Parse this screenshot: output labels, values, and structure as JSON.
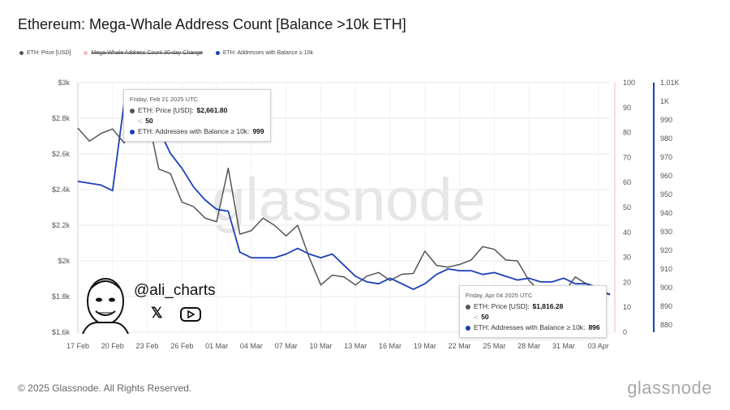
{
  "title": "Ethereum: Mega-Whale Address Count [Balance >10k ETH]",
  "legend": [
    {
      "label": "ETH: Price [USD]",
      "color": "#555555",
      "struck": false
    },
    {
      "label": "Mega-Whale Address Count 30-day Change",
      "color": "#f4b8b8",
      "struck": true
    },
    {
      "label": "ETH: Addresses with Balance ≥ 10k",
      "color": "#1c3fb8",
      "struck": false
    }
  ],
  "tooltip1": {
    "date": "Friday, Feb 21 2025 UTC",
    "price_label": "ETH: Price [USD]:",
    "price_value": "$2,661.80",
    "change_label": "-:",
    "change_value": "50",
    "addr_label": "ETH: Addresses with Balance ≥ 10k:",
    "addr_value": "999"
  },
  "tooltip2": {
    "date": "Friday, Apr 04 2025 UTC",
    "price_label": "ETH: Price [USD]:",
    "price_value": "$1,816.28",
    "change_label": "-:",
    "change_value": "50",
    "addr_label": "ETH: Addresses with Balance ≥ 10k:",
    "addr_value": "896"
  },
  "watermark": "glassnode",
  "social": {
    "handle": "@ali_charts",
    "x_glyph": "𝕏"
  },
  "footer": "© 2025 Glassnode. All Rights Reserved.",
  "brand": "glassnode",
  "colors": {
    "price": "#555555",
    "addresses": "#1c3fb8",
    "change_axis": "#f4b8b8",
    "grid": "#e8e8e8"
  },
  "chart_data": {
    "type": "line",
    "title": "Ethereum: Mega-Whale Address Count [Balance >10k ETH]",
    "x_start": "2025-02-17",
    "x_end": "2025-04-04",
    "x_ticks": [
      "17 Feb",
      "20 Feb",
      "23 Feb",
      "26 Feb",
      "01 Mar",
      "04 Mar",
      "07 Mar",
      "10 Mar",
      "13 Mar",
      "16 Mar",
      "19 Mar",
      "22 Mar",
      "25 Mar",
      "28 Mar",
      "31 Mar",
      "03 Apr"
    ],
    "y_left": {
      "range": [
        1600,
        3000
      ],
      "ticks": [
        "$1.6k",
        "$1.8k",
        "$2k",
        "$2.2k",
        "$2.4k",
        "$2.6k",
        "$2.8k",
        "$3k"
      ],
      "tick_values": [
        1600,
        1800,
        2000,
        2200,
        2400,
        2600,
        2800,
        3000
      ]
    },
    "y_mid": {
      "range": [
        0,
        100
      ],
      "ticks": [
        "0",
        "10",
        "20",
        "30",
        "40",
        "50",
        "60",
        "70",
        "80",
        "90",
        "100"
      ],
      "tick_values": [
        0,
        10,
        20,
        30,
        40,
        50,
        60,
        70,
        80,
        90,
        100
      ]
    },
    "y_right": {
      "range": [
        876,
        1010
      ],
      "ticks": [
        "880",
        "890",
        "900",
        "910",
        "920",
        "930",
        "940",
        "950",
        "960",
        "970",
        "980",
        "990",
        "1K",
        "1.01K"
      ],
      "tick_values": [
        880,
        890,
        900,
        910,
        920,
        930,
        940,
        950,
        960,
        970,
        980,
        990,
        1000,
        1010
      ]
    },
    "series": [
      {
        "name": "ETH: Price [USD]",
        "axis": "left",
        "values": [
          [
            "2025-02-17",
            2745
          ],
          [
            "2025-02-18",
            2672
          ],
          [
            "2025-02-19",
            2715
          ],
          [
            "2025-02-20",
            2740
          ],
          [
            "2025-02-21",
            2662
          ],
          [
            "2025-02-22",
            2765
          ],
          [
            "2025-02-23",
            2820
          ],
          [
            "2025-02-24",
            2515
          ],
          [
            "2025-02-25",
            2490
          ],
          [
            "2025-02-26",
            2330
          ],
          [
            "2025-02-27",
            2305
          ],
          [
            "2025-02-28",
            2240
          ],
          [
            "2025-03-01",
            2220
          ],
          [
            "2025-03-02",
            2520
          ],
          [
            "2025-03-03",
            2150
          ],
          [
            "2025-03-04",
            2170
          ],
          [
            "2025-03-05",
            2240
          ],
          [
            "2025-03-06",
            2200
          ],
          [
            "2025-03-07",
            2140
          ],
          [
            "2025-03-08",
            2200
          ],
          [
            "2025-03-09",
            2020
          ],
          [
            "2025-03-10",
            1865
          ],
          [
            "2025-03-11",
            1920
          ],
          [
            "2025-03-12",
            1910
          ],
          [
            "2025-03-13",
            1865
          ],
          [
            "2025-03-14",
            1915
          ],
          [
            "2025-03-15",
            1935
          ],
          [
            "2025-03-16",
            1890
          ],
          [
            "2025-03-17",
            1925
          ],
          [
            "2025-03-18",
            1930
          ],
          [
            "2025-03-19",
            2055
          ],
          [
            "2025-03-20",
            1975
          ],
          [
            "2025-03-21",
            1965
          ],
          [
            "2025-03-22",
            1980
          ],
          [
            "2025-03-23",
            2005
          ],
          [
            "2025-03-24",
            2080
          ],
          [
            "2025-03-25",
            2065
          ],
          [
            "2025-03-26",
            2005
          ],
          [
            "2025-03-27",
            2000
          ],
          [
            "2025-03-28",
            1890
          ],
          [
            "2025-03-29",
            1825
          ],
          [
            "2025-03-30",
            1810
          ],
          [
            "2025-03-31",
            1820
          ],
          [
            "2025-04-01",
            1910
          ],
          [
            "2025-04-02",
            1870
          ],
          [
            "2025-04-03",
            1810
          ],
          [
            "2025-04-04",
            1816
          ]
        ]
      },
      {
        "name": "ETH: Addresses with Balance ≥ 10k",
        "axis": "right",
        "values": [
          [
            "2025-02-17",
            957
          ],
          [
            "2025-02-18",
            956
          ],
          [
            "2025-02-19",
            955
          ],
          [
            "2025-02-20",
            952
          ],
          [
            "2025-02-21",
            999
          ],
          [
            "2025-02-22",
            997
          ],
          [
            "2025-02-23",
            989
          ],
          [
            "2025-02-24",
            985
          ],
          [
            "2025-02-25",
            972
          ],
          [
            "2025-02-26",
            964
          ],
          [
            "2025-02-27",
            954
          ],
          [
            "2025-02-28",
            947
          ],
          [
            "2025-03-01",
            942
          ],
          [
            "2025-03-02",
            941
          ],
          [
            "2025-03-03",
            919
          ],
          [
            "2025-03-04",
            916
          ],
          [
            "2025-03-05",
            916
          ],
          [
            "2025-03-06",
            916
          ],
          [
            "2025-03-07",
            918
          ],
          [
            "2025-03-08",
            921
          ],
          [
            "2025-03-09",
            918
          ],
          [
            "2025-03-10",
            916
          ],
          [
            "2025-03-11",
            918
          ],
          [
            "2025-03-12",
            912
          ],
          [
            "2025-03-13",
            906
          ],
          [
            "2025-03-14",
            903
          ],
          [
            "2025-03-15",
            902
          ],
          [
            "2025-03-16",
            905
          ],
          [
            "2025-03-17",
            902
          ],
          [
            "2025-03-18",
            899
          ],
          [
            "2025-03-19",
            902
          ],
          [
            "2025-03-20",
            907
          ],
          [
            "2025-03-21",
            910
          ],
          [
            "2025-03-22",
            909
          ],
          [
            "2025-03-23",
            909
          ],
          [
            "2025-03-24",
            907
          ],
          [
            "2025-03-25",
            908
          ],
          [
            "2025-03-26",
            906
          ],
          [
            "2025-03-27",
            904
          ],
          [
            "2025-03-28",
            905
          ],
          [
            "2025-03-29",
            903
          ],
          [
            "2025-03-30",
            903
          ],
          [
            "2025-03-31",
            905
          ],
          [
            "2025-04-01",
            902
          ],
          [
            "2025-04-02",
            902
          ],
          [
            "2025-04-03",
            900
          ],
          [
            "2025-04-04",
            896
          ]
        ]
      }
    ]
  }
}
